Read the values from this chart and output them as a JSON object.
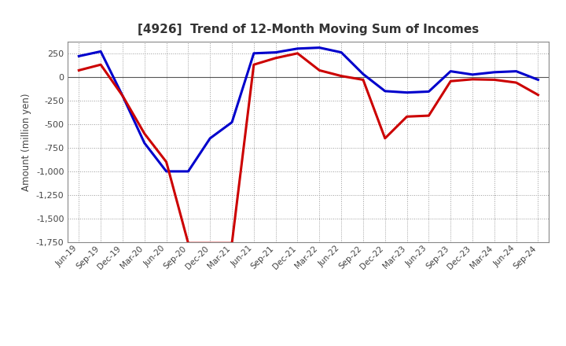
{
  "title": "[4926]  Trend of 12-Month Moving Sum of Incomes",
  "ylabel": "Amount (million yen)",
  "ylim": [
    -1750,
    375
  ],
  "yticks": [
    -1750,
    -1500,
    -1250,
    -1000,
    -750,
    -500,
    -250,
    0,
    250
  ],
  "background_color": "#ffffff",
  "grid_color": "#999999",
  "x_labels": [
    "Jun-19",
    "Sep-19",
    "Dec-19",
    "Mar-20",
    "Jun-20",
    "Sep-20",
    "Dec-20",
    "Mar-21",
    "Jun-21",
    "Sep-21",
    "Dec-21",
    "Mar-22",
    "Jun-22",
    "Sep-22",
    "Dec-22",
    "Mar-23",
    "Jun-23",
    "Sep-23",
    "Dec-23",
    "Mar-24",
    "Jun-24",
    "Sep-24"
  ],
  "ordinary_income": [
    220,
    270,
    -200,
    -700,
    -1000,
    -1000,
    -650,
    -480,
    250,
    260,
    300,
    310,
    260,
    30,
    -150,
    -165,
    -155,
    60,
    25,
    50,
    60,
    -30
  ],
  "net_income": [
    70,
    130,
    -200,
    -600,
    -900,
    -1760,
    -1760,
    -1760,
    130,
    200,
    250,
    70,
    10,
    -30,
    -650,
    -420,
    -410,
    -45,
    -25,
    -30,
    -60,
    -190
  ],
  "ordinary_income_color": "#0000cc",
  "net_income_color": "#cc0000",
  "line_width": 2.2,
  "title_color": "#333333",
  "tick_color": "#444444",
  "spine_color": "#888888",
  "zero_line_color": "#555555"
}
